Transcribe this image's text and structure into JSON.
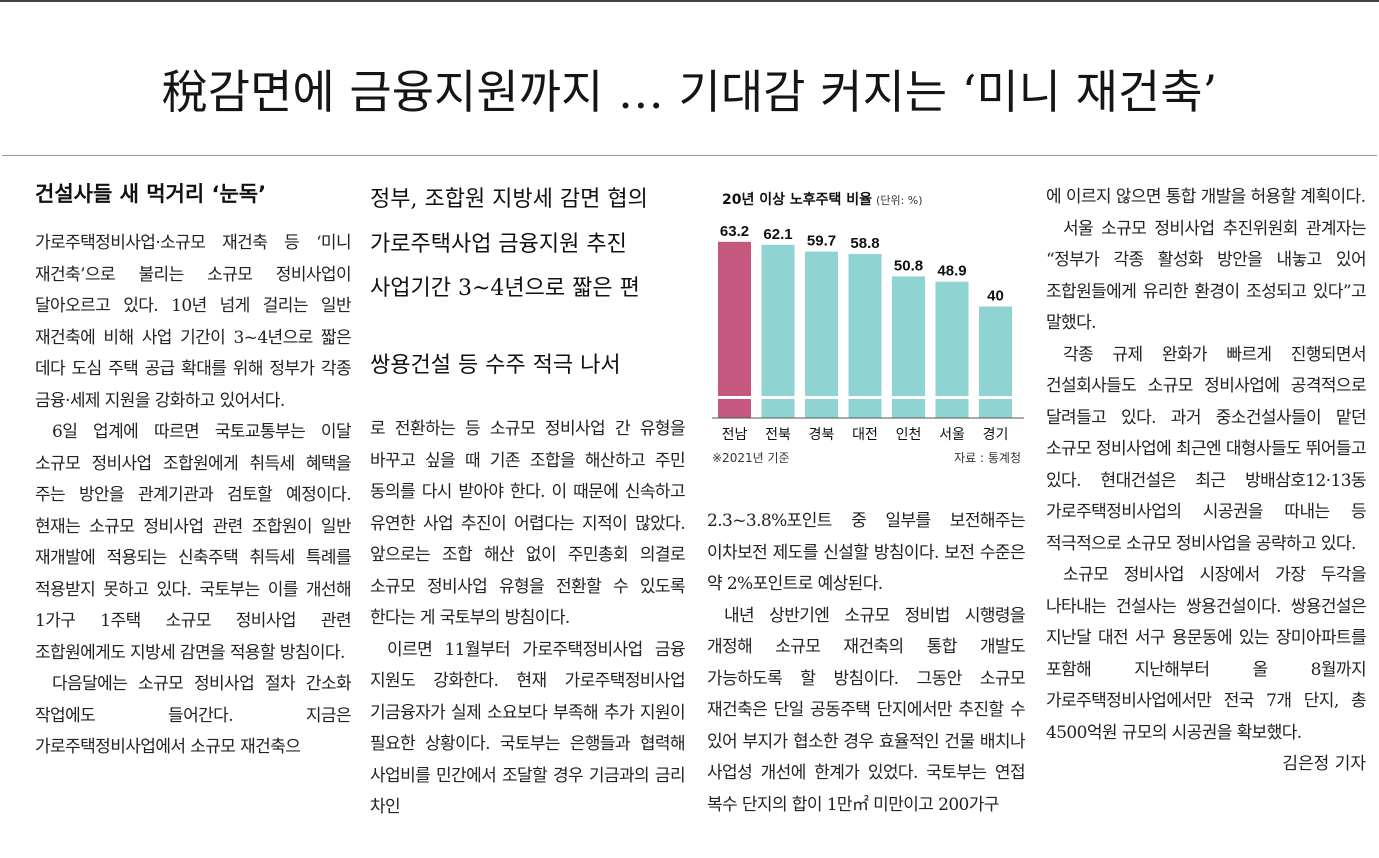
{
  "headline": "稅감면에 금융지원까지 … 기대감 커지는 ‘미니 재건축’",
  "subheads": {
    "left": "건설사들 새 먹거리 ‘눈독’",
    "deck": [
      "정부, 조합원 지방세 감면 협의",
      "가로주택사업 금융지원 추진",
      "사업기간 3~4년으로 짧은 편",
      "쌍용건설 등 수주 적극 나서"
    ]
  },
  "columns": {
    "col1": [
      "가로주택정비사업·소규모 재건축 등 ‘미니 재건축’으로 불리는 소규모 정비사업이 달아오르고 있다. 10년 넘게 걸리는 일반 재건축에 비해 사업 기간이 3~4년으로 짧은 데다 도심 주택 공급 확대를 위해 정부가 각종 금융·세제 지원을 강화하고 있어서다.",
      "6일 업계에 따르면 국토교통부는 이달 소규모 정비사업 조합원에게 취득세 혜택을 주는 방안을 관계기관과 검토할 예정이다. 현재는 소규모 정비사업 관련 조합원이 일반 재개발에 적용되는 신축주택 취득세 특례를 적용받지 못하고 있다. 국토부는 이를 개선해 1가구 1주택 소규모 정비사업 관련 조합원에게도 지방세 감면을 적용할 방침이다.",
      "다음달에는 소규모 정비사업 절차 간소화 작업에도 들어간다. 지금은 가로주택정비사업에서 소규모 재건축으"
    ],
    "col2": [
      "로 전환하는 등 소규모 정비사업 간 유형을 바꾸고 싶을 때 기존 조합을 해산하고 주민 동의를 다시 받아야 한다. 이 때문에 신속하고 유연한 사업 추진이 어렵다는 지적이 많았다. 앞으로는 조합 해산 없이 주민총회 의결로 소규모 정비사업 유형을 전환할 수 있도록 한다는 게 국토부의 방침이다.",
      "이르면 11월부터 가로주택정비사업 금융 지원도 강화한다. 현재 가로주택정비사업 기금융자가 실제 소요보다 부족해 추가 지원이 필요한 상황이다. 국토부는 은행들과 협력해 사업비를 민간에서 조달할 경우 기금과의 금리 차인"
    ],
    "col3": [
      "2.3~3.8%포인트 중 일부를 보전해주는 이차보전 제도를 신설할 방침이다. 보전 수준은 약 2%포인트로 예상된다.",
      "내년 상반기엔 소규모 정비법 시행령을 개정해 소규모 재건축의 통합 개발도 가능하도록 할 방침이다. 그동안 소규모 재건축은 단일 공동주택 단지에서만 추진할 수 있어 부지가 협소한 경우 효율적인 건물 배치나 사업성 개선에 한계가 있었다. 국토부는 연접 복수 단지의 합이 1만㎡ 미만이고 200가구"
    ],
    "col4": [
      "에 이르지 않으면 통합 개발을 허용할 계획이다.",
      "서울 소규모 정비사업 추진위원회 관계자는 “정부가 각종 활성화 방안을 내놓고 있어 조합원들에게 유리한 환경이 조성되고 있다”고 말했다.",
      "각종 규제 완화가 빠르게 진행되면서 건설회사들도 소규모 정비사업에 공격적으로 달려들고 있다. 과거 중소건설사들이 맡던 소규모 정비사업에 최근엔 대형사들도 뛰어들고 있다. 현대건설은 최근 방배삼호12·13동 가로주택정비사업의 시공권을 따내는 등 적극적으로 소규모 정비사업을 공략하고 있다.",
      "소규모 정비사업 시장에서 가장 두각을 나타내는 건설사는 쌍용건설이다. 쌍용건설은 지난달 대전 서구 용문동에 있는 장미아파트를 포함해 지난해부터 올 8월까지 가로주택정비사업에서만 전국 7개 단지, 총 4500억원 규모의 시공권을 확보했다."
    ],
    "byline": "김은정 기자"
  },
  "chart_data": {
    "type": "bar",
    "title": "20년 이상 노후주택 비율",
    "unit": "(단위: %)",
    "categories": [
      "전남",
      "전북",
      "경북",
      "대전",
      "인천",
      "서울",
      "경기"
    ],
    "values": [
      63.2,
      62.1,
      59.7,
      58.8,
      50.8,
      48.9,
      40
    ],
    "value_labels": [
      "63.2",
      "62.1",
      "59.7",
      "58.8",
      "50.8",
      "48.9",
      "40"
    ],
    "ylim": [
      0,
      66
    ],
    "highlight_index": 0,
    "colors": {
      "highlight": "#c4587f",
      "bar": "#8fd3d2",
      "axis": "#555555"
    },
    "note": "※2021년 기준",
    "source": "자료 : 통계청"
  }
}
